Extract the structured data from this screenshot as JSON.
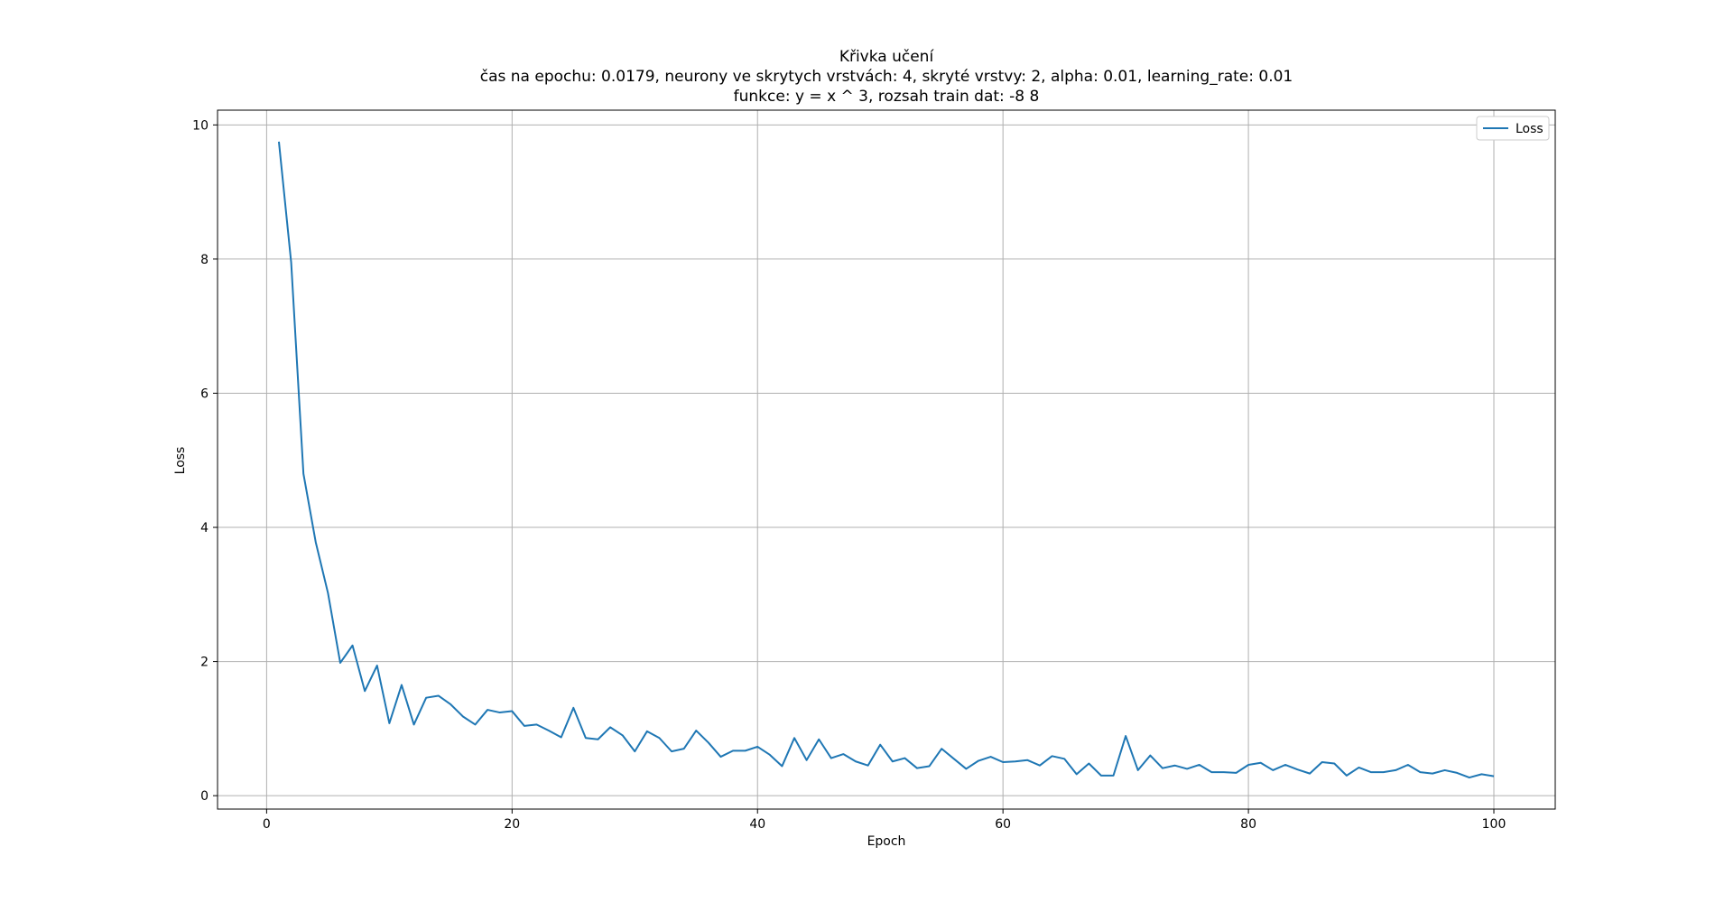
{
  "chart_data": {
    "type": "line",
    "title_lines": [
      "Křivka učení",
      "čas na epochu: 0.0179, neurony ve skrytych vrstvách: 4, skryté vrstvy: 2, alpha: 0.01, learning_rate: 0.01",
      "funkce: y = x ^ 3, rozsah train dat: -8 8"
    ],
    "xlabel": "Epoch",
    "ylabel": "Loss",
    "xlim": [
      -4,
      105
    ],
    "ylim": [
      -0.2,
      10.22
    ],
    "xticks": [
      0,
      20,
      40,
      60,
      80,
      100
    ],
    "yticks": [
      0,
      2,
      4,
      6,
      8,
      10
    ],
    "grid": true,
    "legend_position": "top-right",
    "line_color": "#1f77b4",
    "series": [
      {
        "name": "Loss",
        "x": [
          1,
          2,
          3,
          4,
          5,
          6,
          7,
          8,
          9,
          10,
          11,
          12,
          13,
          14,
          15,
          16,
          17,
          18,
          19,
          20,
          21,
          22,
          23,
          24,
          25,
          26,
          27,
          28,
          29,
          30,
          31,
          32,
          33,
          34,
          35,
          36,
          37,
          38,
          39,
          40,
          41,
          42,
          43,
          44,
          45,
          46,
          47,
          48,
          49,
          50,
          51,
          52,
          53,
          54,
          55,
          56,
          57,
          58,
          59,
          60,
          61,
          62,
          63,
          64,
          65,
          66,
          67,
          68,
          69,
          70,
          71,
          72,
          73,
          74,
          75,
          76,
          77,
          78,
          79,
          80,
          81,
          82,
          83,
          84,
          85,
          86,
          87,
          88,
          89,
          90,
          91,
          92,
          93,
          94,
          95,
          96,
          97,
          98,
          99,
          100
        ],
        "values": [
          9.75,
          7.95,
          4.8,
          3.78,
          3.02,
          1.98,
          2.24,
          1.56,
          1.94,
          1.08,
          1.65,
          1.06,
          1.46,
          1.49,
          1.36,
          1.18,
          1.06,
          1.28,
          1.24,
          1.26,
          1.04,
          1.06,
          0.97,
          0.87,
          1.31,
          0.86,
          0.84,
          1.02,
          0.9,
          0.66,
          0.96,
          0.86,
          0.66,
          0.7,
          0.97,
          0.79,
          0.58,
          0.67,
          0.67,
          0.73,
          0.61,
          0.44,
          0.86,
          0.53,
          0.84,
          0.56,
          0.62,
          0.51,
          0.45,
          0.76,
          0.51,
          0.56,
          0.41,
          0.44,
          0.7,
          0.55,
          0.4,
          0.52,
          0.58,
          0.5,
          0.51,
          0.53,
          0.45,
          0.59,
          0.55,
          0.32,
          0.48,
          0.3,
          0.3,
          0.89,
          0.38,
          0.6,
          0.41,
          0.45,
          0.4,
          0.46,
          0.35,
          0.35,
          0.34,
          0.46,
          0.49,
          0.38,
          0.46,
          0.39,
          0.33,
          0.5,
          0.48,
          0.3,
          0.42,
          0.35,
          0.35,
          0.38,
          0.46,
          0.35,
          0.33,
          0.38,
          0.34,
          0.27,
          0.32,
          0.29
        ]
      }
    ]
  }
}
